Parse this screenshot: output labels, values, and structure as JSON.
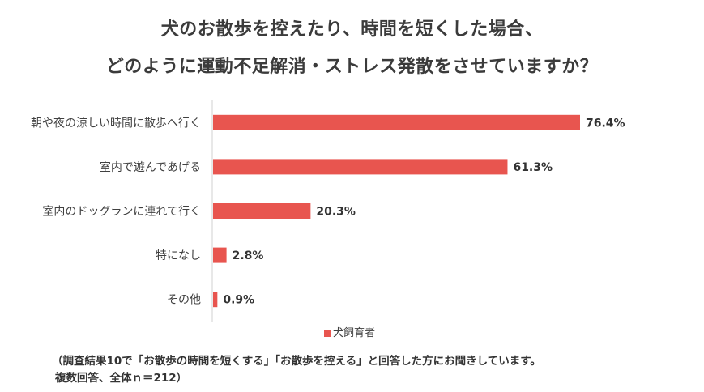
{
  "title_line1": "犬のお散歩を控えたり、時間を短くした場合、",
  "title_line2": "どのように運動不足解消・ストレス発散をさせていますか？",
  "footnote_line1": "（調査結果10で「お散歩の時間を短くする」「お散歩を控える」と回答した方にお聞きしています。",
  "footnote_line2": "複数回答、全体ｎ＝212）",
  "colors": {
    "bar": "#e8554f",
    "axis": "#d0d0d0"
  },
  "chart_data": {
    "type": "bar",
    "orientation": "horizontal",
    "categories": [
      "朝や夜の涼しい時間に散歩へ行く",
      "室内で遊んであげる",
      "室内のドッグランに連れて行く",
      "特になし",
      "その他"
    ],
    "series": [
      {
        "name": "犬飼育者",
        "values": [
          76.4,
          61.3,
          20.3,
          2.8,
          0.9
        ]
      }
    ],
    "value_labels": [
      "76.4%",
      "61.3%",
      "20.3%",
      "2.8%",
      "0.9%"
    ],
    "xlim": [
      0,
      100
    ],
    "grid": false,
    "legend": "bottom-center"
  }
}
